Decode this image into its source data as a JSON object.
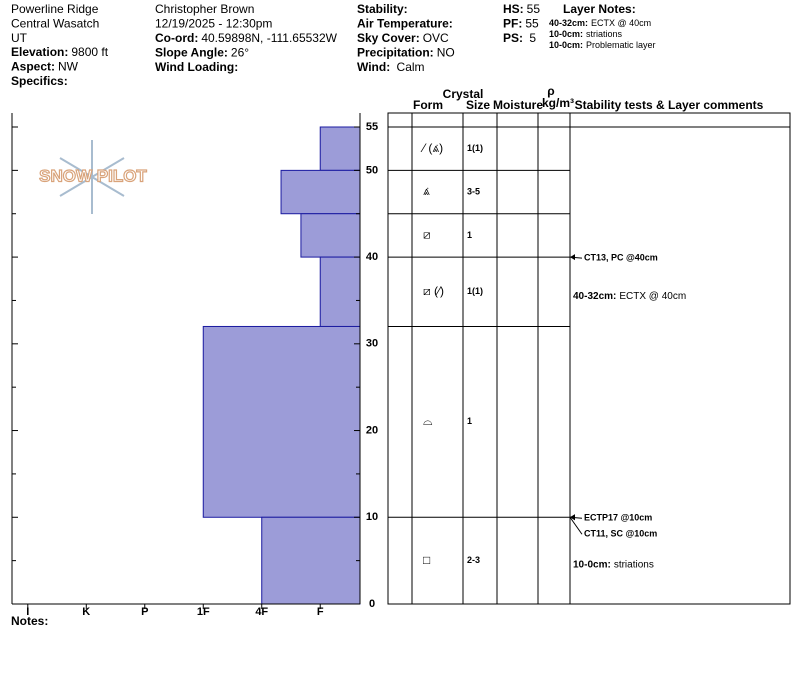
{
  "header": {
    "location": [
      "Powerline Ridge",
      "Central Wasatch",
      "UT"
    ],
    "left_fields": [
      {
        "label": "Elevation:",
        "value": "9800 ft"
      },
      {
        "label": "Aspect:",
        "value": "NW"
      },
      {
        "label": "Specifics:"
      }
    ],
    "observer": "Christopher Brown",
    "datetime": "12/19/2025 - 12:30pm",
    "mid_fields": [
      {
        "label": "Co-ord:",
        "value": "40.59898N, -111.65532W"
      },
      {
        "label": "Slope Angle:",
        "value": "26°"
      },
      {
        "label": "Wind Loading:"
      }
    ],
    "right_fields": [
      {
        "label": "Stability:"
      },
      {
        "label": "Air Temperature:"
      },
      {
        "label": "Sky Cover:",
        "value": "OVC"
      },
      {
        "label": "Precipitation:",
        "value": "NO"
      },
      {
        "label": "Wind:",
        "value": " Calm"
      }
    ],
    "pit_fields": [
      {
        "label": "HS:",
        "value": "55"
      },
      {
        "label": "PF:",
        "value": "55"
      },
      {
        "label": "PS:",
        "value": " 5"
      }
    ],
    "layer_notes_title": "Layer Notes:",
    "layer_notes": [
      {
        "label": "40-32cm:",
        "value": "ECTX @ 40cm"
      },
      {
        "label": "10-0cm:",
        "value": "striations"
      },
      {
        "label": "10-0cm:",
        "value": "Problematic layer"
      }
    ]
  },
  "logo": "SNOW PILOT",
  "chart_data": {
    "type": "hardness",
    "xlim": [
      -0.27,
      5.68
    ],
    "xticks": [
      {
        "value": 0,
        "label": "I"
      },
      {
        "value": 1,
        "label": "K"
      },
      {
        "value": 2,
        "label": "P"
      },
      {
        "value": 3,
        "label": "1F"
      },
      {
        "value": 4,
        "label": "4F"
      },
      {
        "value": 5,
        "label": "F"
      }
    ],
    "ylim": [
      0,
      55
    ],
    "yticks": [
      0,
      10,
      20,
      30,
      40,
      50,
      55
    ],
    "minor_yticks": [
      5,
      15,
      25,
      35,
      45
    ],
    "color": "#9c9cd8",
    "layers": [
      {
        "top": 55,
        "bottom": 50,
        "hardness": 5,
        "form": "⁄ (⩓̇)",
        "size": "1(1)"
      },
      {
        "top": 50,
        "bottom": 45,
        "hardness": 4.33,
        "form": "⩓̇",
        "size": "3-5"
      },
      {
        "top": 45,
        "bottom": 40,
        "hardness": 4.67,
        "form": "⧄",
        "size": "1"
      },
      {
        "top": 40,
        "bottom": 32,
        "hardness": 5,
        "form": "⧄ (⁄)",
        "size": "1(1)"
      },
      {
        "top": 32,
        "bottom": 10,
        "hardness": 3,
        "form": "⌓",
        "size": "1"
      },
      {
        "top": 10,
        "bottom": 0,
        "hardness": 4,
        "form": "□",
        "size": "2-3"
      }
    ],
    "columns": {
      "crystal": "Crystal",
      "form": "Form",
      "size": "Size",
      "moisture": "Moisture",
      "rho": "ρ",
      "density": "kg/m³",
      "comments": "Stability tests & Layer comments"
    },
    "tests": [
      {
        "depth": 40,
        "text": "CT13, PC @40cm"
      },
      {
        "depth": 10,
        "text": "ECTP17 @10cm"
      },
      {
        "depth": 10,
        "text": "CT11, SC @10cm"
      }
    ],
    "layer_comments": [
      {
        "top": 40,
        "bottom": 32,
        "label": "40-32cm:",
        "text": "ECTX @ 40cm"
      },
      {
        "top": 10,
        "bottom": 0,
        "label": "10-0cm:",
        "text": "striations"
      }
    ]
  },
  "notes": "Notes:"
}
